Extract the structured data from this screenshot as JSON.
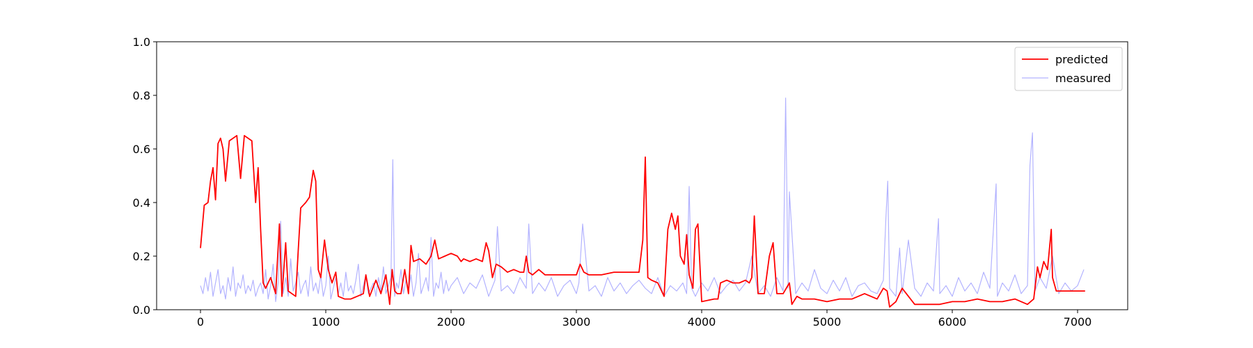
{
  "chart_data": {
    "type": "line",
    "title": "",
    "xlabel": "",
    "ylabel": "",
    "xlim": [
      -350,
      7400
    ],
    "ylim": [
      0,
      1.0
    ],
    "xticks": [
      0,
      1000,
      2000,
      3000,
      4000,
      5000,
      6000,
      7000
    ],
    "xtick_labels": [
      "0",
      "1000",
      "2000",
      "3000",
      "4000",
      "5000",
      "6000",
      "7000"
    ],
    "yticks": [
      0.0,
      0.2,
      0.4,
      0.6,
      0.8,
      1.0
    ],
    "ytick_labels": [
      "0.0",
      "0.2",
      "0.4",
      "0.6",
      "0.8",
      "1.0"
    ],
    "grid": false,
    "legend_position": "top-right",
    "series": [
      {
        "name": "predicted",
        "color": "#ff0000",
        "opacity": 1.0,
        "x": [
          0,
          30,
          60,
          80,
          100,
          120,
          140,
          160,
          180,
          200,
          230,
          260,
          290,
          320,
          350,
          380,
          410,
          440,
          460,
          480,
          500,
          520,
          560,
          600,
          630,
          650,
          680,
          700,
          760,
          780,
          800,
          840,
          870,
          900,
          920,
          940,
          960,
          990,
          1020,
          1050,
          1080,
          1100,
          1150,
          1200,
          1250,
          1300,
          1320,
          1350,
          1400,
          1440,
          1480,
          1510,
          1530,
          1550,
          1570,
          1600,
          1630,
          1660,
          1680,
          1700,
          1750,
          1800,
          1840,
          1870,
          1900,
          1950,
          2000,
          2050,
          2080,
          2100,
          2150,
          2200,
          2250,
          2280,
          2300,
          2330,
          2360,
          2400,
          2450,
          2500,
          2550,
          2580,
          2600,
          2620,
          2650,
          2700,
          2750,
          2800,
          2900,
          3000,
          3030,
          3060,
          3100,
          3200,
          3300,
          3400,
          3500,
          3530,
          3550,
          3570,
          3600,
          3650,
          3700,
          3730,
          3760,
          3790,
          3810,
          3830,
          3860,
          3880,
          3900,
          3930,
          3950,
          3970,
          4000,
          4100,
          4130,
          4150,
          4200,
          4250,
          4300,
          4350,
          4380,
          4400,
          4420,
          4450,
          4500,
          4540,
          4570,
          4600,
          4650,
          4700,
          4720,
          4760,
          4800,
          4900,
          5000,
          5100,
          5200,
          5300,
          5400,
          5450,
          5480,
          5500,
          5550,
          5600,
          5700,
          5800,
          5900,
          6000,
          6100,
          6200,
          6300,
          6400,
          6500,
          6600,
          6650,
          6680,
          6700,
          6730,
          6760,
          6790,
          6800,
          6830,
          6860,
          6900,
          7000,
          7060
        ],
        "y": [
          0.23,
          0.39,
          0.4,
          0.48,
          0.53,
          0.41,
          0.62,
          0.64,
          0.6,
          0.48,
          0.63,
          0.64,
          0.65,
          0.49,
          0.65,
          0.64,
          0.63,
          0.4,
          0.53,
          0.3,
          0.1,
          0.08,
          0.12,
          0.06,
          0.32,
          0.05,
          0.25,
          0.07,
          0.05,
          0.22,
          0.38,
          0.4,
          0.42,
          0.52,
          0.48,
          0.15,
          0.12,
          0.26,
          0.15,
          0.1,
          0.14,
          0.05,
          0.04,
          0.04,
          0.05,
          0.06,
          0.13,
          0.05,
          0.11,
          0.06,
          0.13,
          0.02,
          0.15,
          0.07,
          0.06,
          0.06,
          0.15,
          0.06,
          0.24,
          0.18,
          0.19,
          0.17,
          0.2,
          0.26,
          0.19,
          0.2,
          0.21,
          0.2,
          0.18,
          0.19,
          0.18,
          0.19,
          0.18,
          0.25,
          0.22,
          0.12,
          0.17,
          0.16,
          0.14,
          0.15,
          0.14,
          0.14,
          0.2,
          0.14,
          0.13,
          0.15,
          0.13,
          0.13,
          0.13,
          0.13,
          0.17,
          0.14,
          0.13,
          0.13,
          0.14,
          0.14,
          0.14,
          0.26,
          0.57,
          0.12,
          0.11,
          0.1,
          0.05,
          0.3,
          0.36,
          0.3,
          0.35,
          0.2,
          0.17,
          0.28,
          0.13,
          0.08,
          0.3,
          0.32,
          0.03,
          0.04,
          0.04,
          0.1,
          0.11,
          0.1,
          0.1,
          0.11,
          0.1,
          0.12,
          0.35,
          0.06,
          0.06,
          0.2,
          0.25,
          0.06,
          0.06,
          0.1,
          0.02,
          0.05,
          0.04,
          0.04,
          0.03,
          0.04,
          0.04,
          0.06,
          0.04,
          0.08,
          0.07,
          0.01,
          0.03,
          0.08,
          0.02,
          0.02,
          0.02,
          0.03,
          0.03,
          0.04,
          0.03,
          0.03,
          0.04,
          0.02,
          0.04,
          0.16,
          0.12,
          0.18,
          0.15,
          0.3,
          0.12,
          0.07,
          0.07,
          0.07,
          0.07,
          0.07
        ]
      },
      {
        "name": "measured",
        "color": "#0000ff",
        "opacity": 0.3,
        "x": [
          0,
          20,
          40,
          60,
          80,
          100,
          120,
          140,
          160,
          180,
          200,
          220,
          240,
          260,
          280,
          300,
          320,
          340,
          360,
          380,
          400,
          420,
          440,
          460,
          480,
          500,
          520,
          540,
          560,
          580,
          600,
          620,
          640,
          660,
          680,
          700,
          720,
          740,
          760,
          780,
          800,
          820,
          840,
          860,
          880,
          900,
          920,
          940,
          960,
          980,
          1000,
          1020,
          1040,
          1060,
          1080,
          1100,
          1120,
          1140,
          1160,
          1180,
          1200,
          1220,
          1240,
          1260,
          1280,
          1300,
          1320,
          1340,
          1360,
          1380,
          1400,
          1420,
          1440,
          1460,
          1480,
          1500,
          1520,
          1535,
          1550,
          1565,
          1580,
          1600,
          1620,
          1640,
          1660,
          1680,
          1700,
          1720,
          1740,
          1760,
          1780,
          1800,
          1820,
          1840,
          1860,
          1880,
          1900,
          1920,
          1940,
          1960,
          1980,
          2000,
          2050,
          2100,
          2150,
          2200,
          2250,
          2300,
          2350,
          2370,
          2400,
          2450,
          2500,
          2550,
          2600,
          2620,
          2650,
          2700,
          2750,
          2800,
          2850,
          2900,
          2950,
          3000,
          3020,
          3050,
          3100,
          3150,
          3200,
          3250,
          3300,
          3350,
          3400,
          3450,
          3500,
          3550,
          3600,
          3650,
          3700,
          3750,
          3800,
          3850,
          3880,
          3900,
          3920,
          3950,
          4000,
          4050,
          4100,
          4150,
          4200,
          4250,
          4300,
          4350,
          4400,
          4450,
          4500,
          4550,
          4600,
          4650,
          4670,
          4690,
          4700,
          4750,
          4800,
          4850,
          4900,
          4950,
          5000,
          5050,
          5100,
          5150,
          5200,
          5250,
          5300,
          5350,
          5400,
          5450,
          5470,
          5485,
          5500,
          5550,
          5580,
          5600,
          5650,
          5700,
          5750,
          5800,
          5850,
          5890,
          5900,
          5950,
          6000,
          6050,
          6100,
          6150,
          6200,
          6250,
          6300,
          6350,
          6360,
          6400,
          6450,
          6500,
          6550,
          6600,
          6620,
          6640,
          6660,
          6700,
          6750,
          6800,
          6850,
          6900,
          6950,
          7000,
          7050
        ],
        "y": [
          0.09,
          0.06,
          0.12,
          0.07,
          0.14,
          0.05,
          0.1,
          0.15,
          0.06,
          0.09,
          0.04,
          0.12,
          0.07,
          0.16,
          0.05,
          0.1,
          0.08,
          0.13,
          0.06,
          0.09,
          0.07,
          0.11,
          0.05,
          0.08,
          0.1,
          0.06,
          0.15,
          0.04,
          0.09,
          0.17,
          0.03,
          0.1,
          0.33,
          0.06,
          0.12,
          0.05,
          0.19,
          0.07,
          0.1,
          0.14,
          0.06,
          0.09,
          0.11,
          0.05,
          0.16,
          0.07,
          0.1,
          0.06,
          0.13,
          0.05,
          0.09,
          0.2,
          0.04,
          0.08,
          0.12,
          0.06,
          0.1,
          0.05,
          0.14,
          0.07,
          0.09,
          0.06,
          0.11,
          0.17,
          0.05,
          0.09,
          0.13,
          0.06,
          0.08,
          0.1,
          0.05,
          0.12,
          0.07,
          0.16,
          0.06,
          0.09,
          0.12,
          0.56,
          0.05,
          0.1,
          0.08,
          0.15,
          0.06,
          0.11,
          0.07,
          0.13,
          0.05,
          0.1,
          0.21,
          0.06,
          0.09,
          0.12,
          0.07,
          0.27,
          0.05,
          0.1,
          0.08,
          0.14,
          0.06,
          0.11,
          0.07,
          0.09,
          0.12,
          0.06,
          0.1,
          0.08,
          0.13,
          0.05,
          0.11,
          0.31,
          0.07,
          0.09,
          0.06,
          0.12,
          0.08,
          0.32,
          0.06,
          0.1,
          0.07,
          0.12,
          0.05,
          0.09,
          0.11,
          0.06,
          0.1,
          0.32,
          0.07,
          0.09,
          0.05,
          0.12,
          0.07,
          0.1,
          0.06,
          0.09,
          0.11,
          0.08,
          0.06,
          0.12,
          0.05,
          0.09,
          0.07,
          0.1,
          0.06,
          0.46,
          0.08,
          0.05,
          0.1,
          0.07,
          0.12,
          0.06,
          0.09,
          0.11,
          0.07,
          0.1,
          0.2,
          0.06,
          0.09,
          0.05,
          0.12,
          0.07,
          0.79,
          0.08,
          0.44,
          0.06,
          0.1,
          0.07,
          0.15,
          0.08,
          0.06,
          0.11,
          0.07,
          0.12,
          0.05,
          0.09,
          0.1,
          0.07,
          0.06,
          0.11,
          0.34,
          0.48,
          0.08,
          0.05,
          0.23,
          0.06,
          0.26,
          0.08,
          0.05,
          0.1,
          0.07,
          0.34,
          0.06,
          0.09,
          0.05,
          0.12,
          0.07,
          0.1,
          0.06,
          0.14,
          0.08,
          0.47,
          0.05,
          0.1,
          0.07,
          0.13,
          0.06,
          0.09,
          0.54,
          0.66,
          0.07,
          0.12,
          0.08,
          0.2,
          0.06,
          0.1,
          0.07,
          0.09,
          0.15
        ]
      }
    ]
  }
}
